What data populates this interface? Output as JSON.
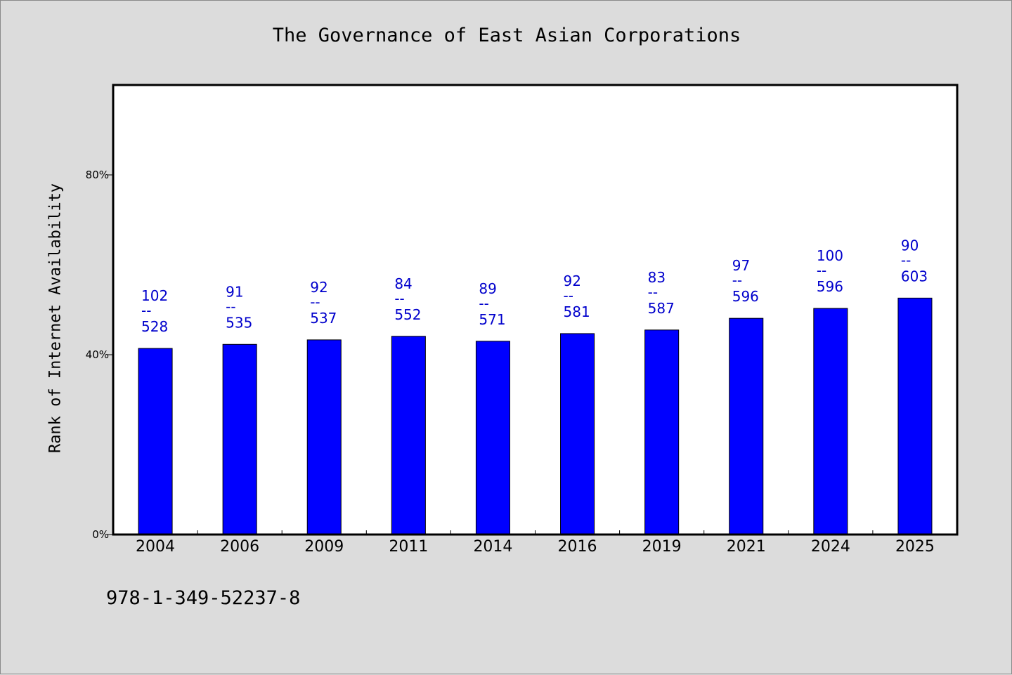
{
  "chart_data": {
    "type": "bar",
    "title": "The Governance of East Asian Corporations",
    "xlabel": "",
    "ylabel": "Rank of Internet Availability",
    "categories": [
      "2004",
      "2006",
      "2009",
      "2011",
      "2014",
      "2016",
      "2019",
      "2021",
      "2024",
      "2025"
    ],
    "values": [
      41.4,
      42.3,
      43.3,
      44.1,
      43.0,
      44.7,
      45.5,
      48.1,
      50.3,
      52.6
    ],
    "data_labels": [
      {
        "top": "102",
        "bottom": "528"
      },
      {
        "top": "91",
        "bottom": "535"
      },
      {
        "top": "92",
        "bottom": "537"
      },
      {
        "top": "84",
        "bottom": "552"
      },
      {
        "top": "89",
        "bottom": "571"
      },
      {
        "top": "92",
        "bottom": "581"
      },
      {
        "top": "83",
        "bottom": "587"
      },
      {
        "top": "97",
        "bottom": "596"
      },
      {
        "top": "100",
        "bottom": "596"
      },
      {
        "top": "90",
        "bottom": "603"
      }
    ],
    "label_separator": "--",
    "ylim": [
      0,
      100
    ],
    "yticks": [
      0,
      40,
      80
    ],
    "ytick_labels": [
      "0%",
      "40%",
      "80%"
    ],
    "bar_color": "#0000ff",
    "label_color": "#0000cc",
    "grid": false,
    "legend": false
  },
  "footer": {
    "isbn": "978-1-349-52237-8"
  },
  "colors": {
    "background": "#dcdcdc",
    "plot_background": "#ffffff",
    "axis": "#000000"
  }
}
